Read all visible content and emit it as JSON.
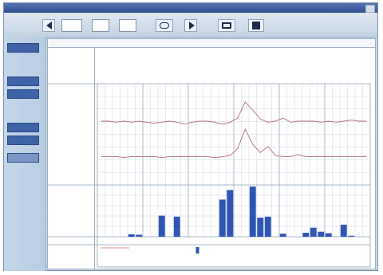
{
  "window": {
    "title": ""
  },
  "toolbar": {
    "date_year": "",
    "date_month": "",
    "date_day": "",
    "unit_year": "",
    "unit_month": "",
    "unit_day": ""
  },
  "sidebar": {
    "btn1": "",
    "section1": "",
    "btn2": "",
    "btn3": "",
    "section2": "",
    "btn4": "",
    "btn5": "",
    "btn6": ""
  },
  "report": {
    "title": "",
    "date": "",
    "info_line1": "",
    "info_line2": "",
    "info_line3": "",
    "info_line4": ""
  },
  "bands": {
    "temp_label": "",
    "temp_unit": "",
    "ppfd_label": "",
    "ppfd_unit": "",
    "events_label": "",
    "notes_label": ""
  },
  "chart_data": [
    {
      "type": "line",
      "series": [
        {
          "values": [
            0.63,
            0.63,
            0.62,
            0.63,
            0.62,
            0.63,
            0.62,
            0.61,
            0.62,
            0.63,
            0.62,
            0.6,
            0.62,
            0.63,
            0.63,
            0.62,
            0.6,
            0.62,
            0.66,
            0.82,
            0.74,
            0.65,
            0.62,
            0.63,
            0.66,
            0.62,
            0.63,
            0.63,
            0.63,
            0.62,
            0.63,
            0.62,
            0.63,
            0.64,
            0.63,
            0.63
          ]
        },
        {
          "values": [
            0.28,
            0.28,
            0.28,
            0.27,
            0.28,
            0.28,
            0.28,
            0.28,
            0.27,
            0.28,
            0.28,
            0.28,
            0.28,
            0.28,
            0.28,
            0.27,
            0.28,
            0.29,
            0.36,
            0.55,
            0.4,
            0.32,
            0.38,
            0.29,
            0.28,
            0.28,
            0.3,
            0.28,
            0.28,
            0.28,
            0.28,
            0.28,
            0.28,
            0.28,
            0.28,
            0.28
          ]
        }
      ]
    },
    {
      "type": "bar",
      "values": [
        0,
        0,
        0,
        0,
        0.05,
        0.04,
        0,
        0,
        0.42,
        0,
        0.4,
        0,
        0,
        0,
        0,
        0,
        0.74,
        0.93,
        0,
        0,
        1.0,
        0.38,
        0.4,
        0,
        0.06,
        0,
        0,
        0.08,
        0.18,
        0.1,
        0.07,
        0,
        0.24,
        0.02,
        0,
        0
      ],
      "ylim": [
        0,
        1
      ]
    }
  ]
}
